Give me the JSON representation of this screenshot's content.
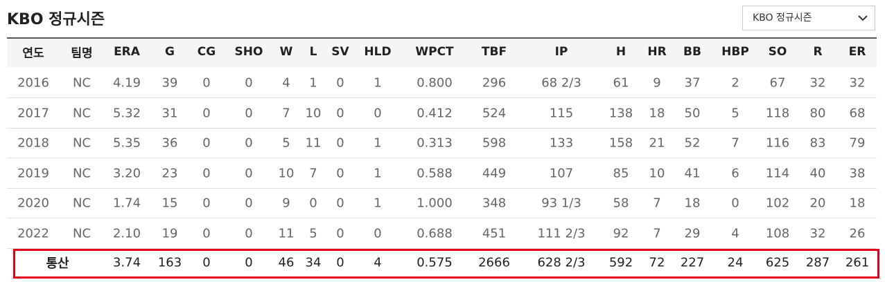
{
  "header": {
    "title": "KBO 정규시즌",
    "select": "KBO 정규시즌"
  },
  "table": {
    "columns": [
      "연도",
      "팀명",
      "ERA",
      "G",
      "CG",
      "SHO",
      "W",
      "L",
      "SV",
      "HLD",
      "WPCT",
      "TBF",
      "IP",
      "H",
      "HR",
      "BB",
      "HBP",
      "SO",
      "R",
      "ER"
    ],
    "rows": [
      [
        "2016",
        "NC",
        "4.19",
        "39",
        "0",
        "0",
        "4",
        "1",
        "0",
        "1",
        "0.800",
        "296",
        "68 2/3",
        "61",
        "9",
        "37",
        "2",
        "67",
        "32",
        "32"
      ],
      [
        "2017",
        "NC",
        "5.32",
        "31",
        "0",
        "0",
        "7",
        "10",
        "0",
        "0",
        "0.412",
        "524",
        "115",
        "138",
        "18",
        "50",
        "5",
        "118",
        "80",
        "68"
      ],
      [
        "2018",
        "NC",
        "5.35",
        "36",
        "0",
        "0",
        "5",
        "11",
        "0",
        "1",
        "0.313",
        "598",
        "133",
        "158",
        "21",
        "52",
        "7",
        "116",
        "83",
        "79"
      ],
      [
        "2019",
        "NC",
        "3.20",
        "23",
        "0",
        "0",
        "10",
        "7",
        "0",
        "1",
        "0.588",
        "449",
        "107",
        "85",
        "10",
        "41",
        "6",
        "114",
        "40",
        "38"
      ],
      [
        "2020",
        "NC",
        "1.74",
        "15",
        "0",
        "0",
        "9",
        "0",
        "0",
        "1",
        "1.000",
        "348",
        "93 1/3",
        "58",
        "7",
        "18",
        "0",
        "102",
        "20",
        "18"
      ],
      [
        "2022",
        "NC",
        "2.10",
        "19",
        "0",
        "0",
        "11",
        "5",
        "0",
        "0",
        "0.688",
        "451",
        "111 2/3",
        "92",
        "7",
        "29",
        "4",
        "108",
        "32",
        "26"
      ]
    ],
    "total": [
      "통산",
      "3.74",
      "163",
      "0",
      "0",
      "46",
      "34",
      "0",
      "4",
      "0.575",
      "2666",
      "628 2/3",
      "592",
      "72",
      "227",
      "24",
      "625",
      "287",
      "261"
    ]
  }
}
